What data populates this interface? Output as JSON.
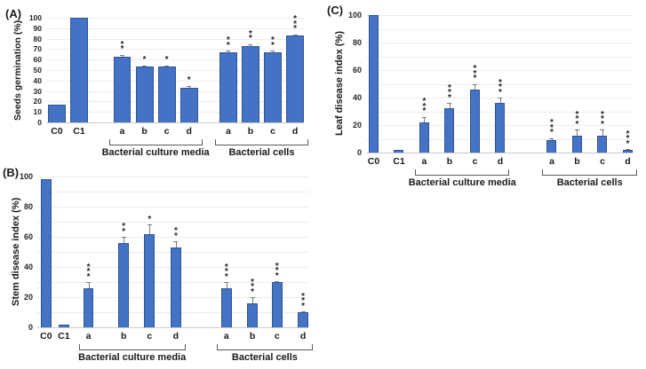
{
  "colors": {
    "bar": "#4472C4",
    "bar_border": "#2F5597",
    "grid": "#ECECEC",
    "baseline": "#C9C9C9",
    "error": "#7A7A7A",
    "text": "#1A1A1A"
  },
  "chart_data": [
    {
      "type": "bar",
      "panel_label": "(A)",
      "ylabel": "Seeds germination (%)",
      "xlabel": "",
      "ylim": [
        0,
        100
      ],
      "grid_step": 10,
      "ytick_label_step": 10,
      "grid": true,
      "legend": "none",
      "bars": [
        {
          "label": "C0",
          "value": 17,
          "err": 0,
          "stars": 0,
          "gap": 0.1
        },
        {
          "label": "C1",
          "value": 100,
          "err": 0,
          "stars": 0,
          "gap": 0.26
        },
        {
          "label": "a",
          "value": 63,
          "err": 1.5,
          "stars": 2,
          "gap": 1.44
        },
        {
          "label": "b",
          "value": 53,
          "err": 1.5,
          "stars": 1,
          "gap": 0.26
        },
        {
          "label": "c",
          "value": 53,
          "err": 1.5,
          "stars": 1,
          "gap": 0.26
        },
        {
          "label": "d",
          "value": 33,
          "err": 2,
          "stars": 1,
          "gap": 0.26
        },
        {
          "label": "a",
          "value": 67,
          "err": 1.5,
          "stars": 2,
          "gap": 1.22
        },
        {
          "label": "b",
          "value": 73,
          "err": 2,
          "stars": 2,
          "gap": 0.26
        },
        {
          "label": "c",
          "value": 67,
          "err": 1.5,
          "stars": 2,
          "gap": 0.26
        },
        {
          "label": "d",
          "value": 83,
          "err": 1,
          "stars": 3,
          "gap": 0.26
        }
      ],
      "groups": [
        {
          "label": "Bacterial culture media",
          "from": 2,
          "to": 5
        },
        {
          "label": "Bacterial cells",
          "from": 6,
          "to": 9
        }
      ]
    },
    {
      "type": "bar",
      "panel_label": "(B)",
      "ylabel": "Stem disease index (%)",
      "xlabel": "",
      "ylim": [
        0,
        100
      ],
      "grid_step": 10,
      "ytick_label_step": 20,
      "grid": true,
      "legend": "none",
      "bars": [
        {
          "label": "C0",
          "value": 98,
          "err": 0,
          "stars": 0,
          "gap": 0.33
        },
        {
          "label": "C1",
          "value": 2,
          "err": 0,
          "stars": 0,
          "gap": 0.68
        },
        {
          "label": "a",
          "value": 26,
          "err": 4,
          "stars": 3,
          "gap": 1.32
        },
        {
          "label": "b",
          "value": 56,
          "err": 4,
          "stars": 2,
          "gap": 2.33
        },
        {
          "label": "c",
          "value": 62,
          "err": 6,
          "stars": 1,
          "gap": 1.45
        },
        {
          "label": "d",
          "value": 53,
          "err": 4,
          "stars": 2,
          "gap": 1.48
        },
        {
          "label": "a",
          "value": 26,
          "err": 4,
          "stars": 3,
          "gap": 3.78
        },
        {
          "label": "b",
          "value": 16,
          "err": 4,
          "stars": 3,
          "gap": 1.46
        },
        {
          "label": "c",
          "value": 30,
          "err": 0.5,
          "stars": 3,
          "gap": 1.32
        },
        {
          "label": "d",
          "value": 10,
          "err": 0.5,
          "stars": 3,
          "gap": 1.46
        }
      ],
      "groups": [
        {
          "label": "Bacterial culture media",
          "from": 2,
          "to": 5
        },
        {
          "label": "Bacterial cells",
          "from": 6,
          "to": 9
        }
      ]
    },
    {
      "type": "bar",
      "panel_label": "(C)",
      "ylabel": "Leaf disease index (%)",
      "xlabel": "",
      "ylim": [
        0,
        100
      ],
      "grid_step": 10,
      "ytick_label_step": 20,
      "grid": true,
      "legend": "none",
      "bars": [
        {
          "label": "C0",
          "value": 100,
          "err": 0,
          "stars": 0,
          "gap": 0.27
        },
        {
          "label": "C1",
          "value": 2,
          "err": 0,
          "stars": 0,
          "gap": 1.59
        },
        {
          "label": "a",
          "value": 22,
          "err": 4,
          "stars": 3,
          "gap": 1.59
        },
        {
          "label": "b",
          "value": 32,
          "err": 4,
          "stars": 3,
          "gap": 1.59
        },
        {
          "label": "c",
          "value": 46,
          "err": 4,
          "stars": 3,
          "gap": 1.59
        },
        {
          "label": "d",
          "value": 36,
          "err": 4,
          "stars": 3,
          "gap": 1.59
        },
        {
          "label": "a",
          "value": 9,
          "err": 1.5,
          "stars": 3,
          "gap": 4.27
        },
        {
          "label": "b",
          "value": 12.5,
          "err": 4,
          "stars": 3,
          "gap": 1.59
        },
        {
          "label": "c",
          "value": 12.5,
          "err": 4,
          "stars": 3,
          "gap": 1.59
        },
        {
          "label": "d",
          "value": 2,
          "err": 0.5,
          "stars": 3,
          "gap": 1.59
        }
      ],
      "groups": [
        {
          "label": "Bacterial culture media",
          "from": 2,
          "to": 5
        },
        {
          "label": "Bacterial cells",
          "from": 6,
          "to": 9
        }
      ]
    }
  ]
}
